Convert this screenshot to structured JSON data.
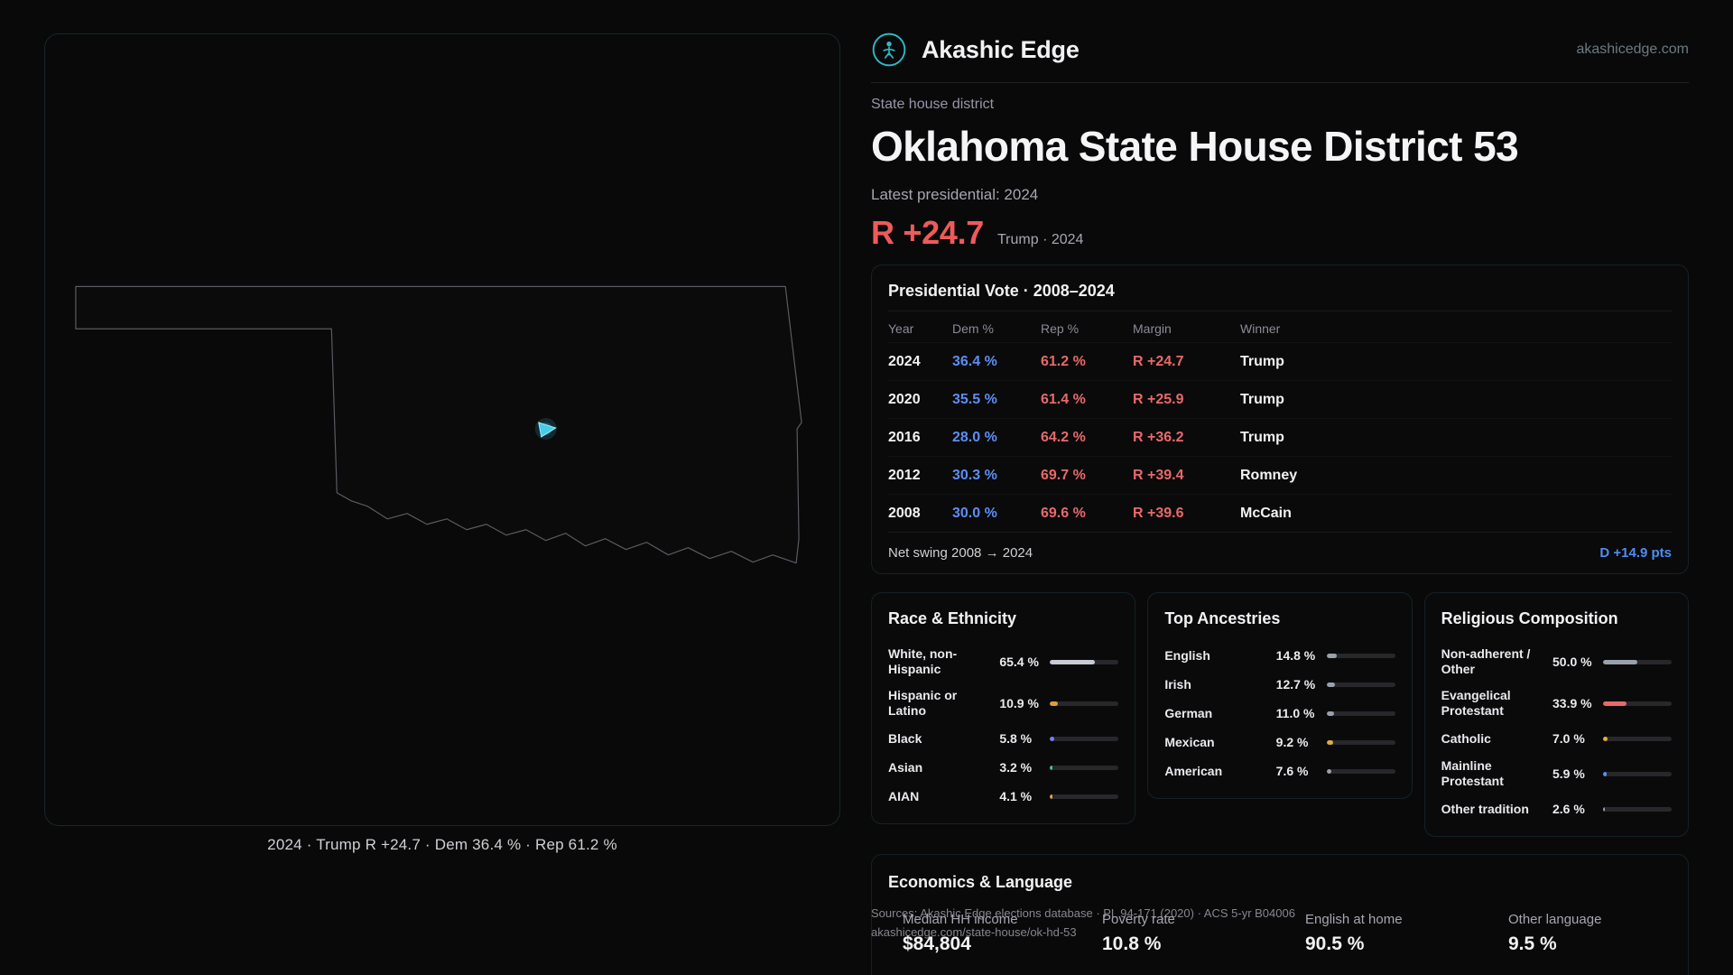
{
  "header": {
    "brand": "Akashic Edge",
    "site": "akashicedge.com"
  },
  "hero": {
    "eyebrow": "State house district",
    "title": "Oklahoma State House District 53",
    "latest_label": "Latest presidential: 2024",
    "margin": "R +24.7",
    "margin_context": "Trump · 2024",
    "margin_color": "#ef5a5a"
  },
  "map": {
    "caption": "2024 · Trump R +24.7 · Dem 36.4 % · Rep 61.2 %",
    "district_color": "#38c6e8"
  },
  "presidential": {
    "title": "Presidential Vote · 2008–2024",
    "columns": [
      "Year",
      "Dem %",
      "Rep %",
      "Margin",
      "Winner"
    ],
    "rows": [
      {
        "year": "2024",
        "dem": "36.4 %",
        "rep": "61.2 %",
        "margin": "R +24.7",
        "winner": "Trump"
      },
      {
        "year": "2020",
        "dem": "35.5 %",
        "rep": "61.4 %",
        "margin": "R +25.9",
        "winner": "Trump"
      },
      {
        "year": "2016",
        "dem": "28.0 %",
        "rep": "64.2 %",
        "margin": "R +36.2",
        "winner": "Trump"
      },
      {
        "year": "2012",
        "dem": "30.3 %",
        "rep": "69.7 %",
        "margin": "R +39.4",
        "winner": "Romney"
      },
      {
        "year": "2008",
        "dem": "30.0 %",
        "rep": "69.6 %",
        "margin": "R +39.6",
        "winner": "McCain"
      }
    ],
    "net_swing_label": "Net swing 2008 → 2024",
    "net_swing_value": "D +14.9 pts"
  },
  "race": {
    "title": "Race & Ethnicity",
    "rows": [
      {
        "label": "White, non-Hispanic",
        "value": "65.4 %",
        "pct": 65.4,
        "color": "#c6cbd4"
      },
      {
        "label": "Hispanic or Latino",
        "value": "10.9 %",
        "pct": 10.9,
        "color": "#e09a3e"
      },
      {
        "label": "Black",
        "value": "5.8 %",
        "pct": 5.8,
        "color": "#7d7df2"
      },
      {
        "label": "Asian",
        "value": "3.2 %",
        "pct": 3.2,
        "color": "#41c48e"
      },
      {
        "label": "AIAN",
        "value": "4.1 %",
        "pct": 4.1,
        "color": "#dfa43e"
      }
    ]
  },
  "ancestries": {
    "title": "Top Ancestries",
    "rows": [
      {
        "label": "English",
        "value": "14.8 %",
        "pct": 14.8,
        "color": "#99a1ab"
      },
      {
        "label": "Irish",
        "value": "12.7 %",
        "pct": 12.7,
        "color": "#99a1ab"
      },
      {
        "label": "German",
        "value": "11.0 %",
        "pct": 11.0,
        "color": "#99a1ab"
      },
      {
        "label": "Mexican",
        "value": "9.2 %",
        "pct": 9.2,
        "color": "#ddab3e"
      },
      {
        "label": "American",
        "value": "7.6 %",
        "pct": 7.6,
        "color": "#99a1ab"
      }
    ]
  },
  "religion": {
    "title": "Religious Composition",
    "rows": [
      {
        "label": "Non-adherent / Other",
        "value": "50.0 %",
        "pct": 50.0,
        "color": "#99a1ab"
      },
      {
        "label": "Evangelical Protestant",
        "value": "33.9 %",
        "pct": 33.9,
        "color": "#e66a68"
      },
      {
        "label": "Catholic",
        "value": "7.0 %",
        "pct": 7.0,
        "color": "#e0b13e"
      },
      {
        "label": "Mainline Protestant",
        "value": "5.9 %",
        "pct": 5.9,
        "color": "#5b8ff2"
      },
      {
        "label": "Other tradition",
        "value": "2.6 %",
        "pct": 2.6,
        "color": "#99a1ab"
      }
    ]
  },
  "economics": {
    "title": "Economics & Language",
    "stats": [
      {
        "label": "Median HH income",
        "value": "$84,804"
      },
      {
        "label": "Poverty rate",
        "value": "10.8 %"
      },
      {
        "label": "English at home",
        "value": "90.5 %"
      },
      {
        "label": "Other language",
        "value": "9.5 %"
      }
    ]
  },
  "sources": {
    "line1": "Sources: Akashic Edge elections database · PL 94-171 (2020) · ACS 5-yr B04006",
    "line2": "akashicedge.com/state-house/ok-hd-53"
  },
  "colors": {
    "dem": "#5b8ff2",
    "rep": "#e8696a",
    "accent": "#2fb8c6"
  }
}
